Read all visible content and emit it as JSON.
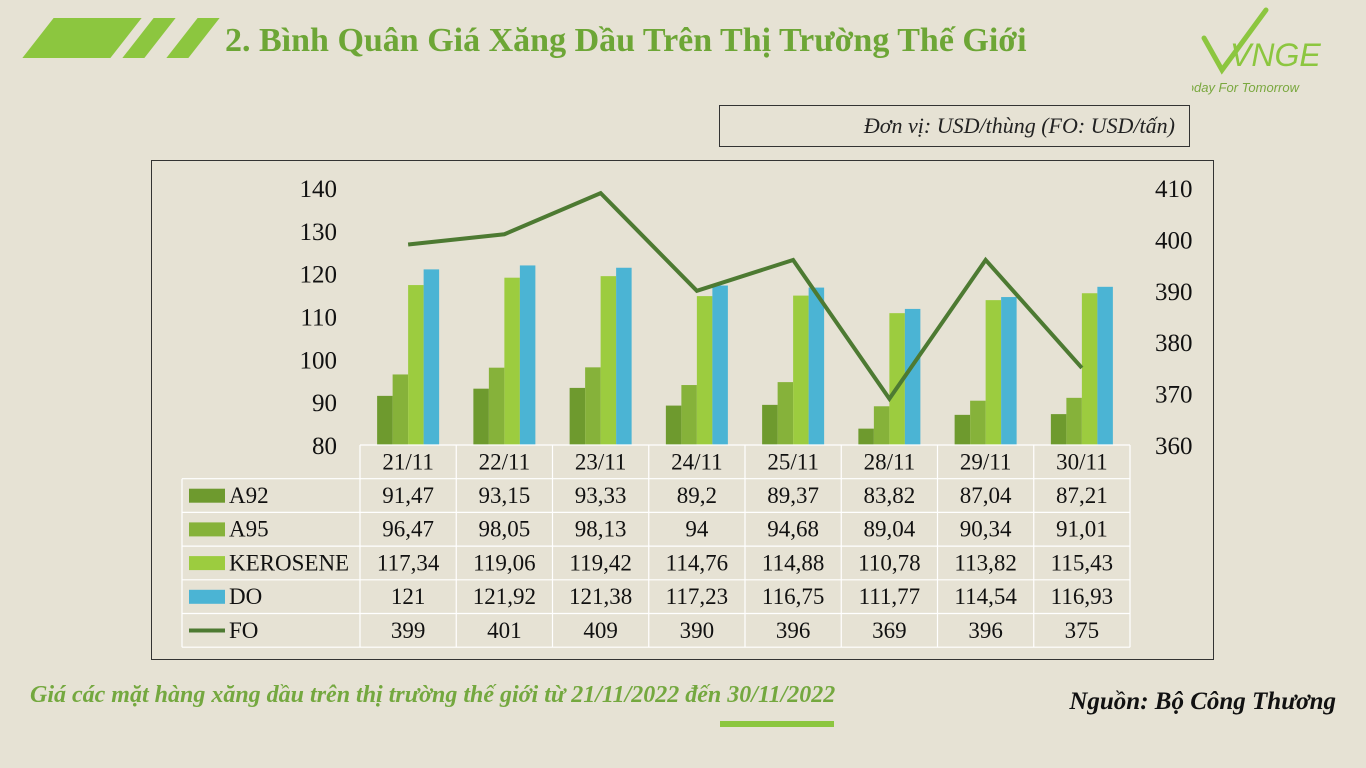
{
  "title": "2. Bình Quân Giá Xăng Dầu Trên Thị Trường Thế Giới",
  "logo": {
    "brand": "VNGE",
    "tagline": "Today For Tomorrow"
  },
  "unit_note": "Đơn vị: USD/thùng (FO: USD/tấn)",
  "caption": "Giá các mặt hàng xăng dầu trên thị trường thế giới từ 21/11/2022 đến 30/11/2022",
  "source": "Nguồn: Bộ Công Thương",
  "colors": {
    "background": "#e6e2d4",
    "title": "#6da636",
    "stripe": "#8cc63f",
    "A92": "#6e9a2e",
    "A95": "#86b23a",
    "KEROSENE": "#9ccc3f",
    "DO": "#4bb4d4",
    "FO": "#4d7a32"
  },
  "chart_data": {
    "type": "bar",
    "categories": [
      "21/11",
      "22/11",
      "23/11",
      "24/11",
      "25/11",
      "28/11",
      "29/11",
      "30/11"
    ],
    "series": [
      {
        "name": "A92",
        "type": "bar",
        "axis": "left",
        "labels": [
          "91,47",
          "93,15",
          "93,33",
          "89,2",
          "89,37",
          "83,82",
          "87,04",
          "87,21"
        ],
        "values": [
          91.47,
          93.15,
          93.33,
          89.2,
          89.37,
          83.82,
          87.04,
          87.21
        ]
      },
      {
        "name": "A95",
        "type": "bar",
        "axis": "left",
        "labels": [
          "96,47",
          "98,05",
          "98,13",
          "94",
          "94,68",
          "89,04",
          "90,34",
          "91,01"
        ],
        "values": [
          96.47,
          98.05,
          98.13,
          94,
          94.68,
          89.04,
          90.34,
          91.01
        ]
      },
      {
        "name": "KEROSENE",
        "type": "bar",
        "axis": "left",
        "labels": [
          "117,34",
          "119,06",
          "119,42",
          "114,76",
          "114,88",
          "110,78",
          "113,82",
          "115,43"
        ],
        "values": [
          117.34,
          119.06,
          119.42,
          114.76,
          114.88,
          110.78,
          113.82,
          115.43
        ]
      },
      {
        "name": "DO",
        "type": "bar",
        "axis": "left",
        "labels": [
          "121",
          "121,92",
          "121,38",
          "117,23",
          "116,75",
          "111,77",
          "114,54",
          "116,93"
        ],
        "values": [
          121,
          121.92,
          121.38,
          117.23,
          116.75,
          111.77,
          114.54,
          116.93
        ]
      },
      {
        "name": "FO",
        "type": "line",
        "axis": "right",
        "labels": [
          "399",
          "401",
          "409",
          "390",
          "396",
          "369",
          "396",
          "375"
        ],
        "values": [
          399,
          401,
          409,
          390,
          396,
          369,
          396,
          375
        ]
      }
    ],
    "y_left": {
      "min": 80,
      "max": 140,
      "ticks": [
        80,
        90,
        100,
        110,
        120,
        130,
        140
      ]
    },
    "y_right": {
      "min": 360,
      "max": 410,
      "ticks": [
        360,
        370,
        380,
        390,
        400,
        410
      ]
    },
    "grid": false,
    "data_table": true,
    "legend_placement": "data-table"
  }
}
